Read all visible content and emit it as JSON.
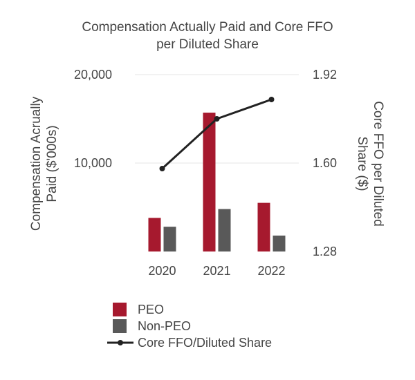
{
  "chart_data": {
    "type": "bar+line",
    "title_lines": [
      "Compensation Actually Paid and Core FFO",
      "per Diluted Share"
    ],
    "categories": [
      "2020",
      "2021",
      "2022"
    ],
    "left_axis": {
      "label_lines": [
        "Compensation Acrually",
        "Paid ($'000s)"
      ],
      "min": 0,
      "max": 20000,
      "ticks": [
        {
          "value": 10000,
          "label": "10,000"
        },
        {
          "value": 20000,
          "label": "20,000"
        }
      ]
    },
    "right_axis": {
      "label_lines": [
        "Core FFO per Diluted",
        "Share ($)"
      ],
      "min": 1.28,
      "max": 1.92,
      "ticks": [
        {
          "value": 1.28,
          "label": "1.28"
        },
        {
          "value": 1.6,
          "label": "1.60"
        },
        {
          "value": 1.92,
          "label": "1.92"
        }
      ]
    },
    "series": [
      {
        "name": "PEO",
        "kind": "bar",
        "axis": "left",
        "color": "#a6192e",
        "values": [
          3800,
          15700,
          5500
        ]
      },
      {
        "name": "Non-PEO",
        "kind": "bar",
        "axis": "left",
        "color": "#595959",
        "values": [
          2800,
          4800,
          1800
        ]
      },
      {
        "name": "Core FFO/Diluted Share",
        "kind": "line",
        "axis": "right",
        "color": "#222222",
        "values": [
          1.58,
          1.76,
          1.83
        ]
      }
    ],
    "legend_position": "bottom-left"
  }
}
